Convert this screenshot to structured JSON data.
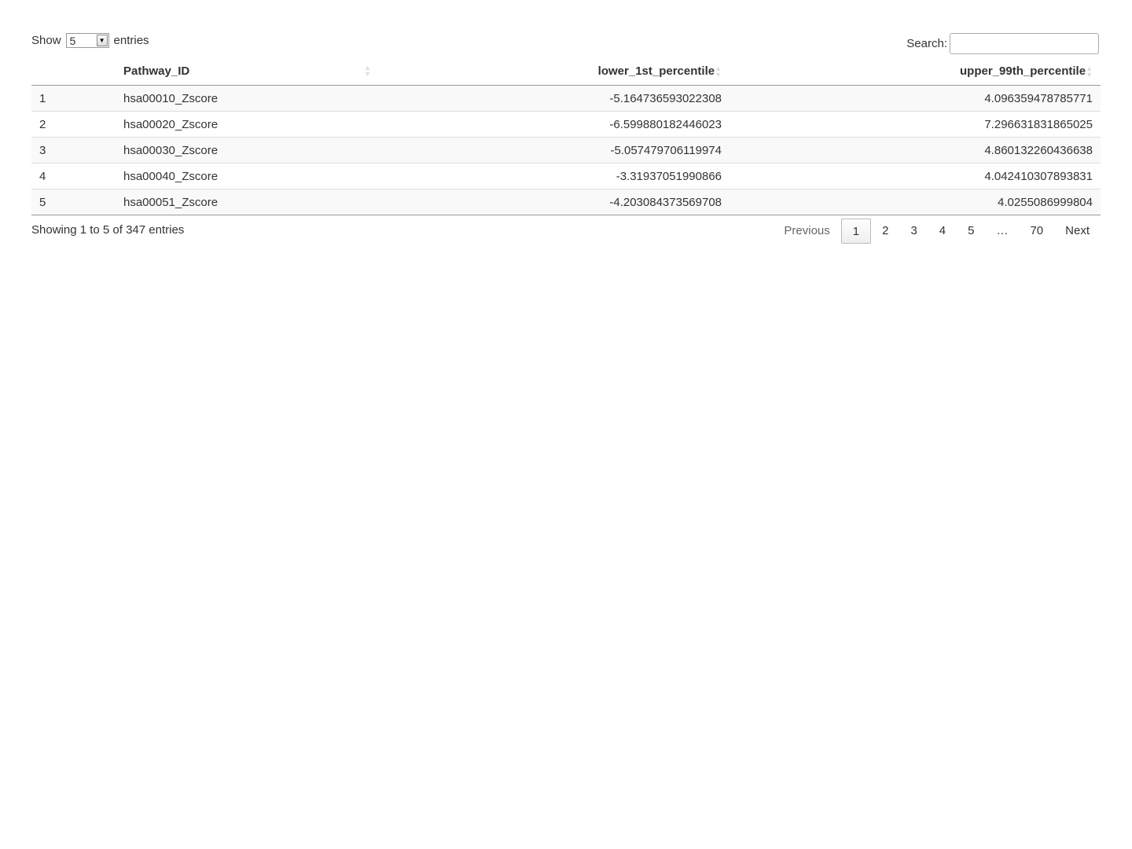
{
  "length_control": {
    "prefix": "Show",
    "value": "5",
    "suffix": "entries"
  },
  "search": {
    "label": "Search:",
    "value": ""
  },
  "table": {
    "headers": [
      "",
      "Pathway_ID",
      "lower_1st_percentile",
      "upper_99th_percentile"
    ],
    "rows": [
      [
        "1",
        "hsa00010_Zscore",
        "-5.164736593022308",
        "4.096359478785771"
      ],
      [
        "2",
        "hsa00020_Zscore",
        "-6.599880182446023",
        "7.296631831865025"
      ],
      [
        "3",
        "hsa00030_Zscore",
        "-5.057479706119974",
        "4.860132260436638"
      ],
      [
        "4",
        "hsa00040_Zscore",
        "-3.31937051990866",
        "4.042410307893831"
      ],
      [
        "5",
        "hsa00051_Zscore",
        "-4.203084373569708",
        "4.0255086999804"
      ]
    ]
  },
  "info": "Showing 1 to 5 of 347 entries",
  "pagination": {
    "previous": "Previous",
    "pages": [
      "1",
      "2",
      "3",
      "4",
      "5",
      "…",
      "70"
    ],
    "current": "1",
    "next": "Next"
  }
}
